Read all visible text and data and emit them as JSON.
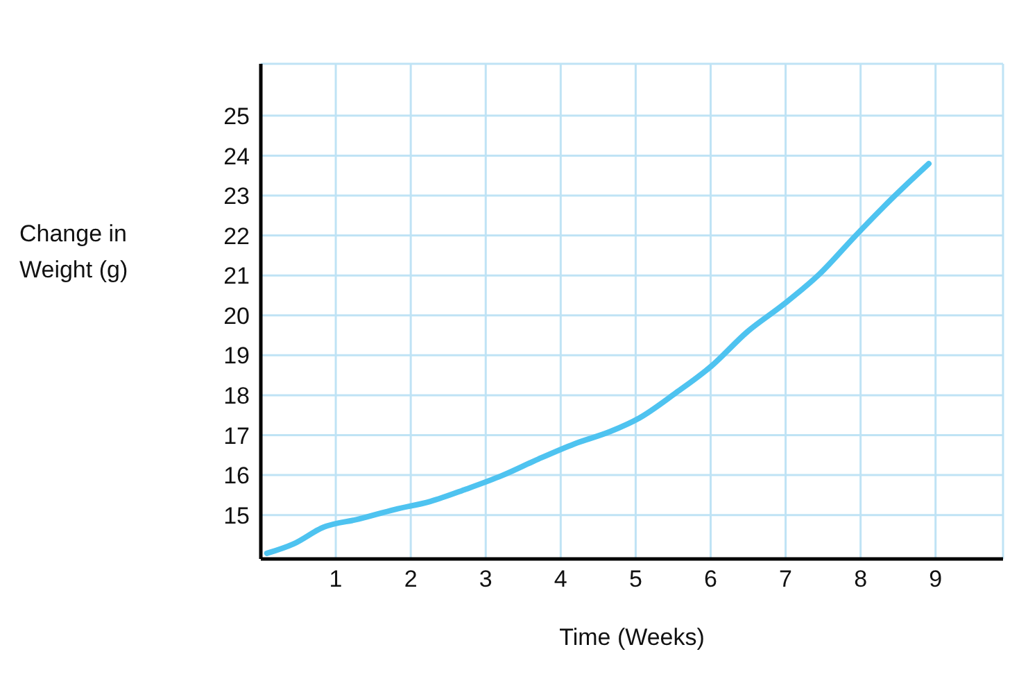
{
  "chart_data": {
    "type": "line",
    "xlabel": "Time (Weeks)",
    "ylabel": "Change in Weight (g)",
    "xlim": [
      0,
      9.9
    ],
    "ylim": [
      13.9,
      26.3
    ],
    "xticks": [
      1,
      2,
      3,
      4,
      5,
      6,
      7,
      8,
      9
    ],
    "yticks": [
      15,
      16,
      17,
      18,
      19,
      20,
      21,
      22,
      23,
      24,
      25
    ],
    "grid": true,
    "marker": "none",
    "line_style": "solid",
    "series": [
      {
        "color": "#4ec3f0",
        "x": [
          0.08,
          0.44,
          0.83,
          1.31,
          1.79,
          2.26,
          2.74,
          3.22,
          3.7,
          4.18,
          4.66,
          5.05,
          5.53,
          6.01,
          6.49,
          6.97,
          7.45,
          7.93,
          8.41,
          8.91
        ],
        "values": [
          14.04,
          14.28,
          14.69,
          14.9,
          15.14,
          15.34,
          15.65,
          15.99,
          16.4,
          16.78,
          17.09,
          17.43,
          18.05,
          18.73,
          19.59,
          20.27,
          21.03,
          21.99,
          22.91,
          23.8
        ]
      }
    ]
  }
}
